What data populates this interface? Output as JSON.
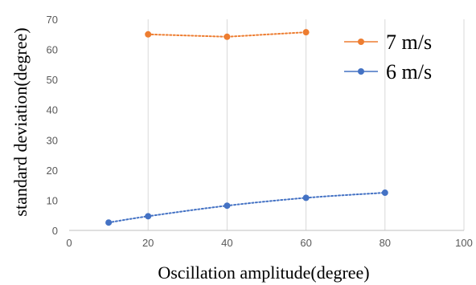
{
  "chart_data": {
    "type": "scatter",
    "xlabel": "Oscillation amplitude(degree)",
    "ylabel": "standard deviation(degree)",
    "xlim": [
      0,
      100
    ],
    "ylim": [
      0,
      70
    ],
    "x_ticks": [
      0,
      20,
      40,
      60,
      80,
      100
    ],
    "y_ticks": [
      0,
      10,
      20,
      30,
      40,
      50,
      60,
      70
    ],
    "vertical_grid": true,
    "horizontal_grid": false,
    "legend_position": "top-right",
    "series": [
      {
        "name": "7 m/s",
        "color": "#ed7d31",
        "points": [
          {
            "x": 20,
            "y": 65.0
          },
          {
            "x": 40,
            "y": 64.2
          },
          {
            "x": 60,
            "y": 65.7
          }
        ],
        "line_style": "dotted"
      },
      {
        "name": "6 m/s",
        "color": "#4472c4",
        "points": [
          {
            "x": 10,
            "y": 2.6
          },
          {
            "x": 20,
            "y": 4.7
          },
          {
            "x": 40,
            "y": 8.2
          },
          {
            "x": 60,
            "y": 10.8
          },
          {
            "x": 80,
            "y": 12.5
          }
        ],
        "line_style": "dotted-trend"
      }
    ]
  }
}
